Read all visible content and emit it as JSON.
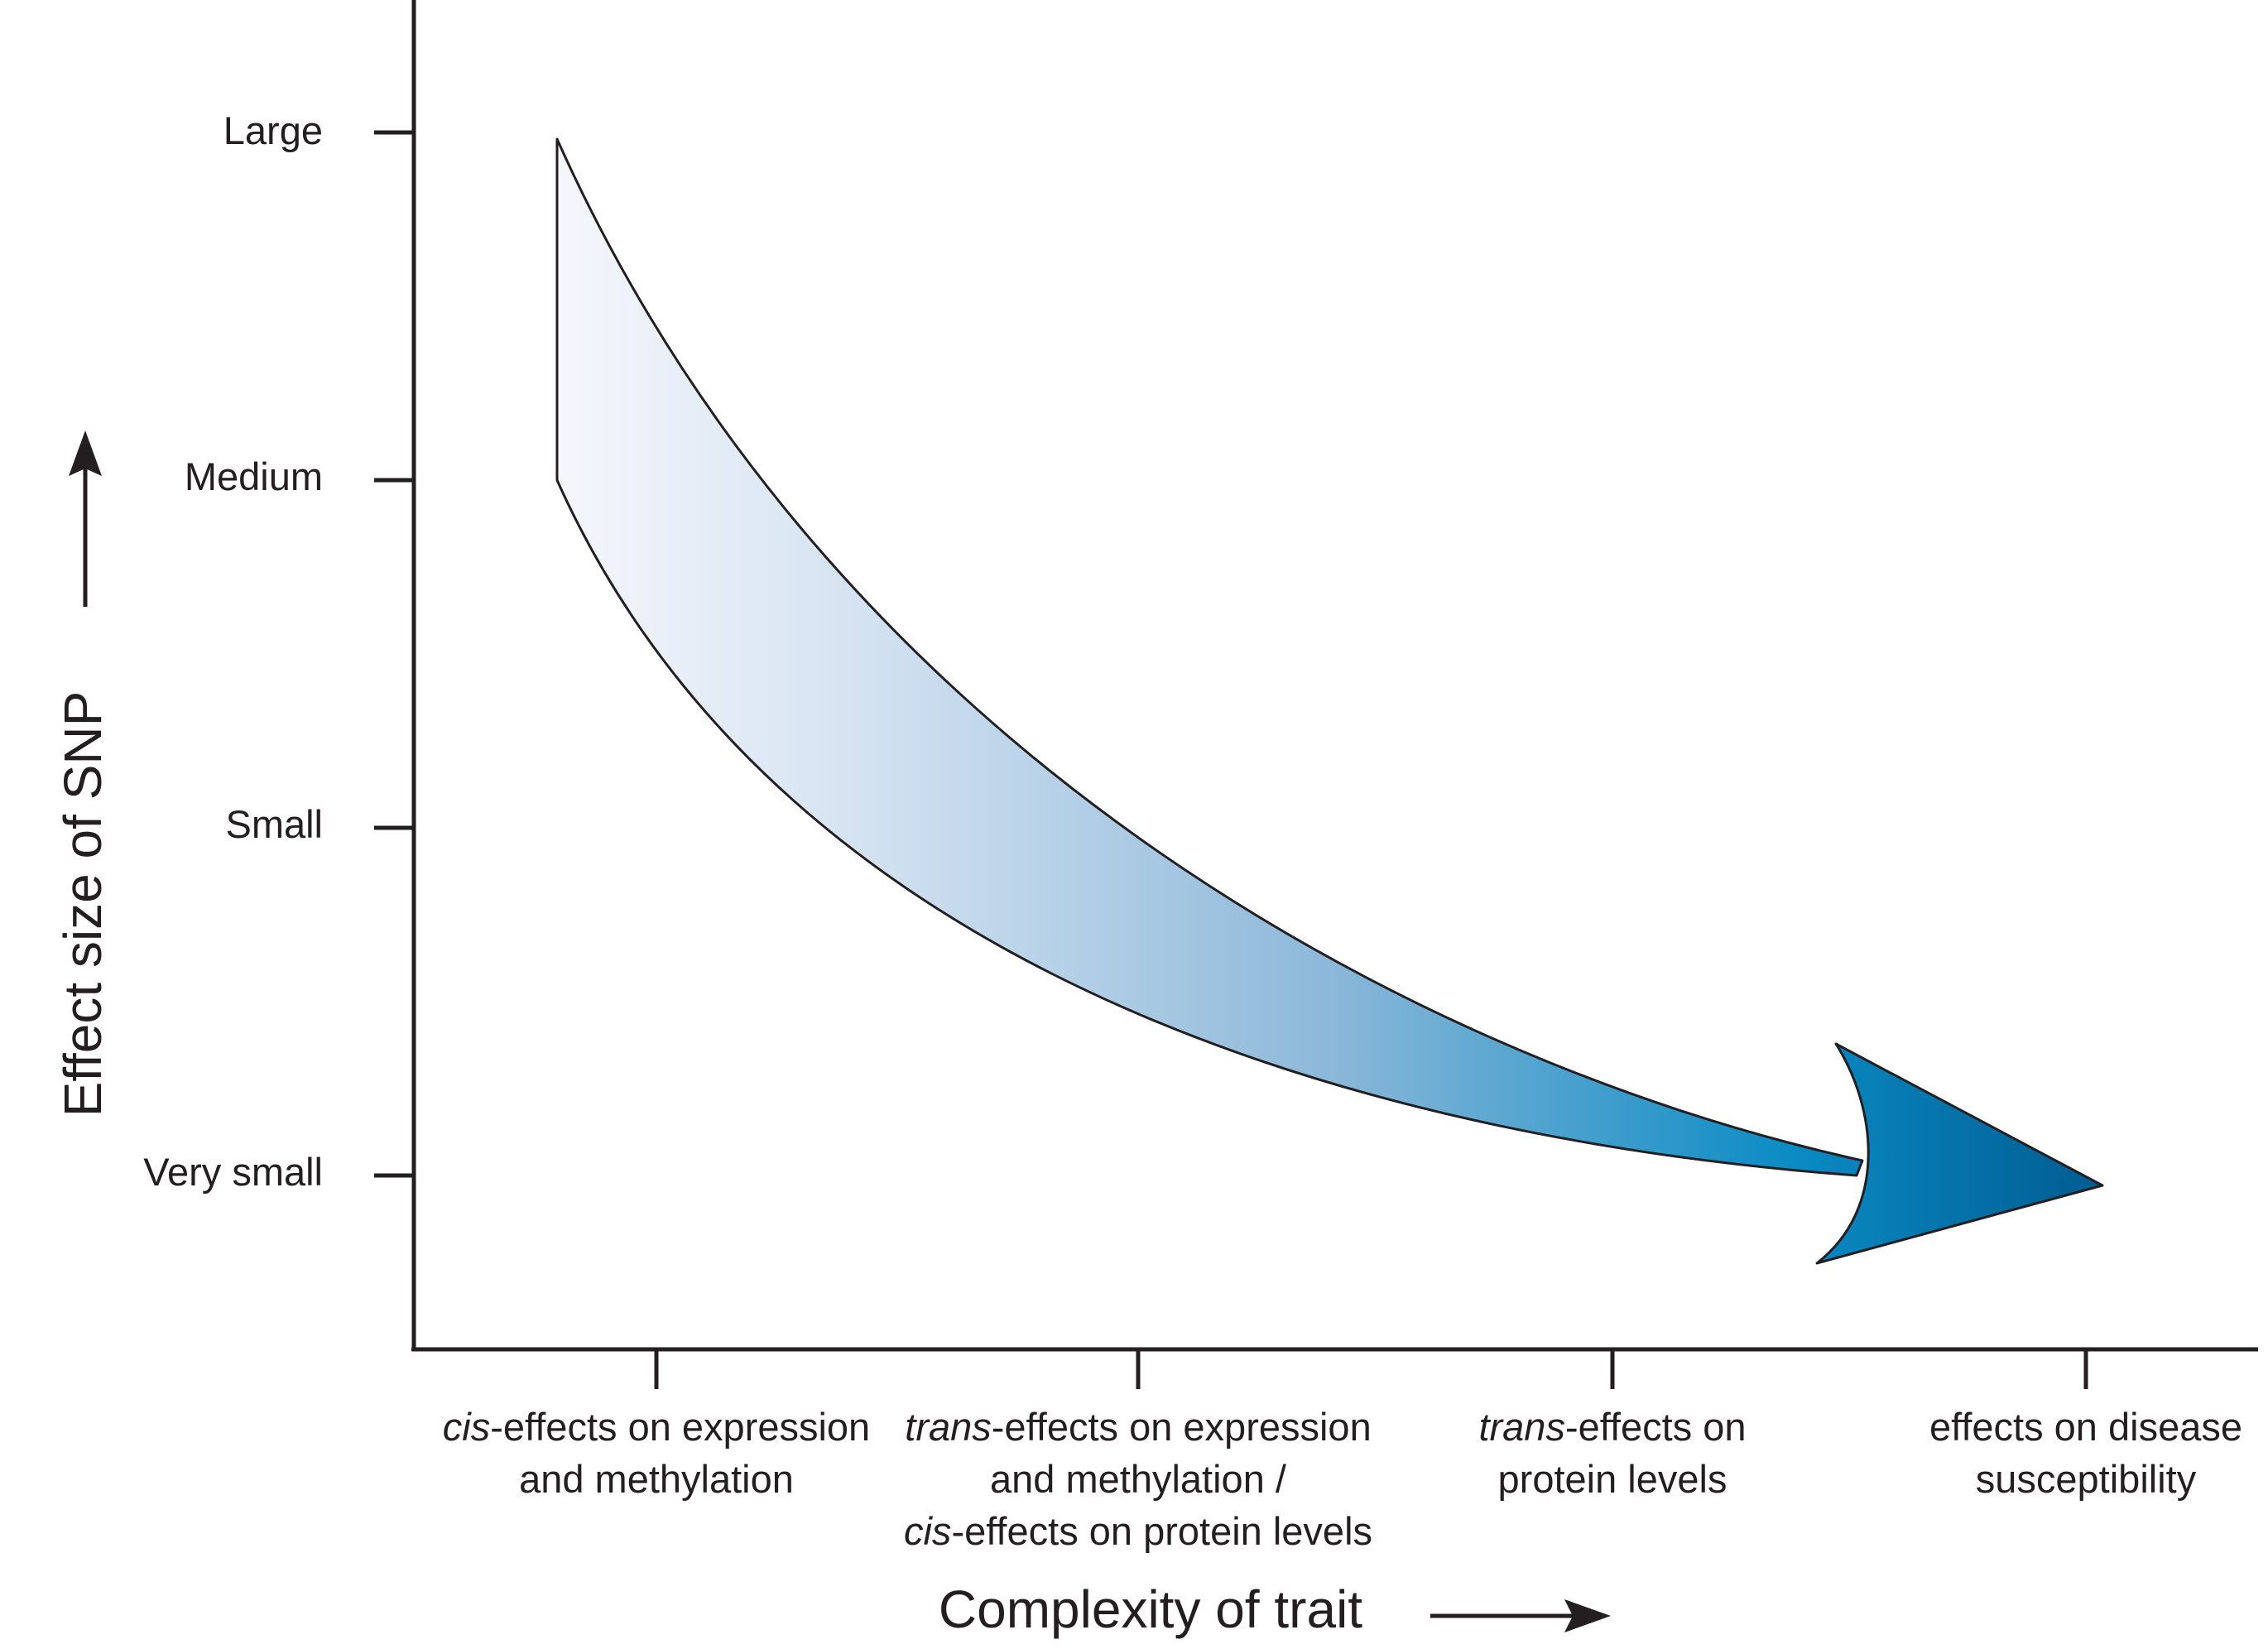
{
  "y_axis": {
    "title": "Effect size of SNP",
    "levels": [
      "Large",
      "Medium",
      "Small",
      "Very small"
    ]
  },
  "x_axis": {
    "title": "Complexity of trait",
    "categories": [
      {
        "lines": [
          {
            "italic": "cis",
            "rest": "-effects on expression"
          },
          {
            "italic": "",
            "rest": "and methylation"
          }
        ]
      },
      {
        "lines": [
          {
            "italic": "trans",
            "rest": "-effects on expression"
          },
          {
            "italic": "",
            "rest": "and methylation /"
          },
          {
            "italic": "cis",
            "rest": "-effects on protein levels"
          }
        ]
      },
      {
        "lines": [
          {
            "italic": "trans",
            "rest": "-effects on"
          },
          {
            "italic": "",
            "rest": "protein levels"
          }
        ]
      },
      {
        "lines": [
          {
            "italic": "",
            "rest": "effects on disease"
          },
          {
            "italic": "",
            "rest": "susceptibility"
          }
        ]
      }
    ]
  },
  "colors": {
    "ink": "#231f20",
    "gradient_start": "#f6f7fc",
    "gradient_mid1": "#d3e2f1",
    "gradient_mid2": "#8cb8d9",
    "gradient_mid3": "#0a8bc4",
    "gradient_end": "#005c91"
  }
}
